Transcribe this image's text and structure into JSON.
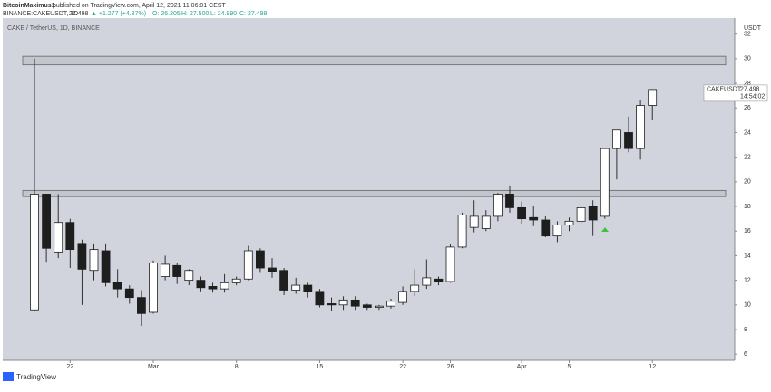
{
  "header": {
    "author": "BitcoinMaximus1",
    "published": "published on TradingView.com, April 12, 2021 11:06:01 CEST",
    "symbol": "BINANCE:CAKEUSDT, 1D",
    "last": "27.498",
    "change": "▲ +1.277 (+4.87%)",
    "open": "O: 26.205",
    "high": "H: 27.500",
    "low": "L: 24.990",
    "close": "C: 27.498"
  },
  "footer": "TradingView",
  "chart_data": {
    "type": "candlestick",
    "title": "CAKE / TetherUS, 1D, BINANCE",
    "y_label": "USDT",
    "last_label": {
      "symbol": "CAKEUSDT",
      "price": 27.498,
      "countdown": "14:54:02"
    },
    "categories": [
      null,
      null,
      null,
      "22",
      null,
      null,
      null,
      null,
      null,
      null,
      "Mar",
      null,
      null,
      null,
      null,
      null,
      null,
      "8",
      null,
      null,
      null,
      null,
      null,
      null,
      "15",
      null,
      null,
      null,
      null,
      null,
      null,
      "22",
      null,
      null,
      null,
      "26",
      null,
      null,
      null,
      null,
      null,
      "Apr",
      null,
      null,
      null,
      "5",
      null,
      null,
      null,
      null,
      null,
      null,
      "12"
    ],
    "open": [
      9.6,
      19,
      14.3,
      16.7,
      15,
      12.8,
      14.4,
      11.8,
      11.3,
      10.6,
      9.4,
      12.3,
      13.2,
      12,
      12,
      11.5,
      11.3,
      11.8,
      12.1,
      14.4,
      13,
      12.8,
      11.2,
      11.6,
      11.1,
      10.1,
      10,
      10.4,
      10,
      9.8,
      9.9,
      10.2,
      11.1,
      11.6,
      12.1,
      11.9,
      14.7,
      16.3,
      16.2,
      17.2,
      19,
      17.9,
      17.1,
      16.9,
      15.6,
      16.5,
      16.8,
      18,
      17.2,
      22.7,
      24,
      22.7,
      26.205
    ],
    "high": [
      30,
      19,
      19,
      17,
      15.3,
      15,
      15,
      12.9,
      11.6,
      11.2,
      13.6,
      14,
      13.4,
      12.9,
      12.3,
      11.8,
      12.5,
      12.3,
      14.8,
      14.6,
      13.8,
      13,
      12.2,
      11.8,
      11.3,
      10.6,
      10.7,
      10.7,
      10.1,
      10,
      10.5,
      11.5,
      12.9,
      13.7,
      12.3,
      14.9,
      17.5,
      18.5,
      17.7,
      19.1,
      19.7,
      18.4,
      18,
      17.2,
      16.8,
      17.1,
      18.1,
      18.5,
      22.7,
      24.2,
      25.3,
      26.6,
      27.5
    ],
    "low": [
      9.5,
      13.5,
      13.8,
      13,
      10,
      12,
      11.5,
      10.6,
      10.1,
      8.3,
      9.3,
      12,
      11.7,
      11.6,
      11.1,
      11,
      11,
      11.6,
      12,
      12.6,
      12.2,
      10.8,
      10.9,
      10.6,
      9.8,
      9.5,
      9.6,
      9.6,
      9.6,
      9.6,
      9.7,
      10,
      10.7,
      11.3,
      11.6,
      11.8,
      14.6,
      15.9,
      16,
      16.8,
      17.5,
      16.6,
      16.4,
      15.5,
      15.1,
      16,
      16.4,
      15.6,
      17,
      20.2,
      22.4,
      21.8,
      24.99
    ],
    "close": [
      19,
      14.6,
      16.7,
      14.5,
      12.9,
      14.5,
      11.8,
      11.3,
      10.6,
      9.3,
      13.4,
      13.3,
      12.3,
      12.8,
      11.4,
      11.3,
      11.8,
      12.1,
      14.4,
      13,
      12.7,
      11.2,
      11.6,
      11.1,
      10,
      10,
      10.4,
      9.9,
      9.8,
      9.9,
      10.3,
      11.1,
      11.6,
      12.2,
      11.9,
      14.7,
      17.3,
      17.2,
      17.2,
      19,
      17.9,
      17,
      16.9,
      15.6,
      16.5,
      16.8,
      17.9,
      16.9,
      22.7,
      24.2,
      22.7,
      26.2,
      27.498
    ],
    "up_color": "#ffffff",
    "down_color": "#1e1e1e",
    "zones": [
      {
        "low": 29.5,
        "high": 30.2
      },
      {
        "low": 18.8,
        "high": 19.3
      }
    ],
    "ylim": [
      5.5,
      33.3
    ],
    "yticks": [
      6,
      8,
      10,
      12,
      14,
      16,
      18,
      20,
      22,
      24,
      26,
      28,
      30,
      32
    ]
  }
}
